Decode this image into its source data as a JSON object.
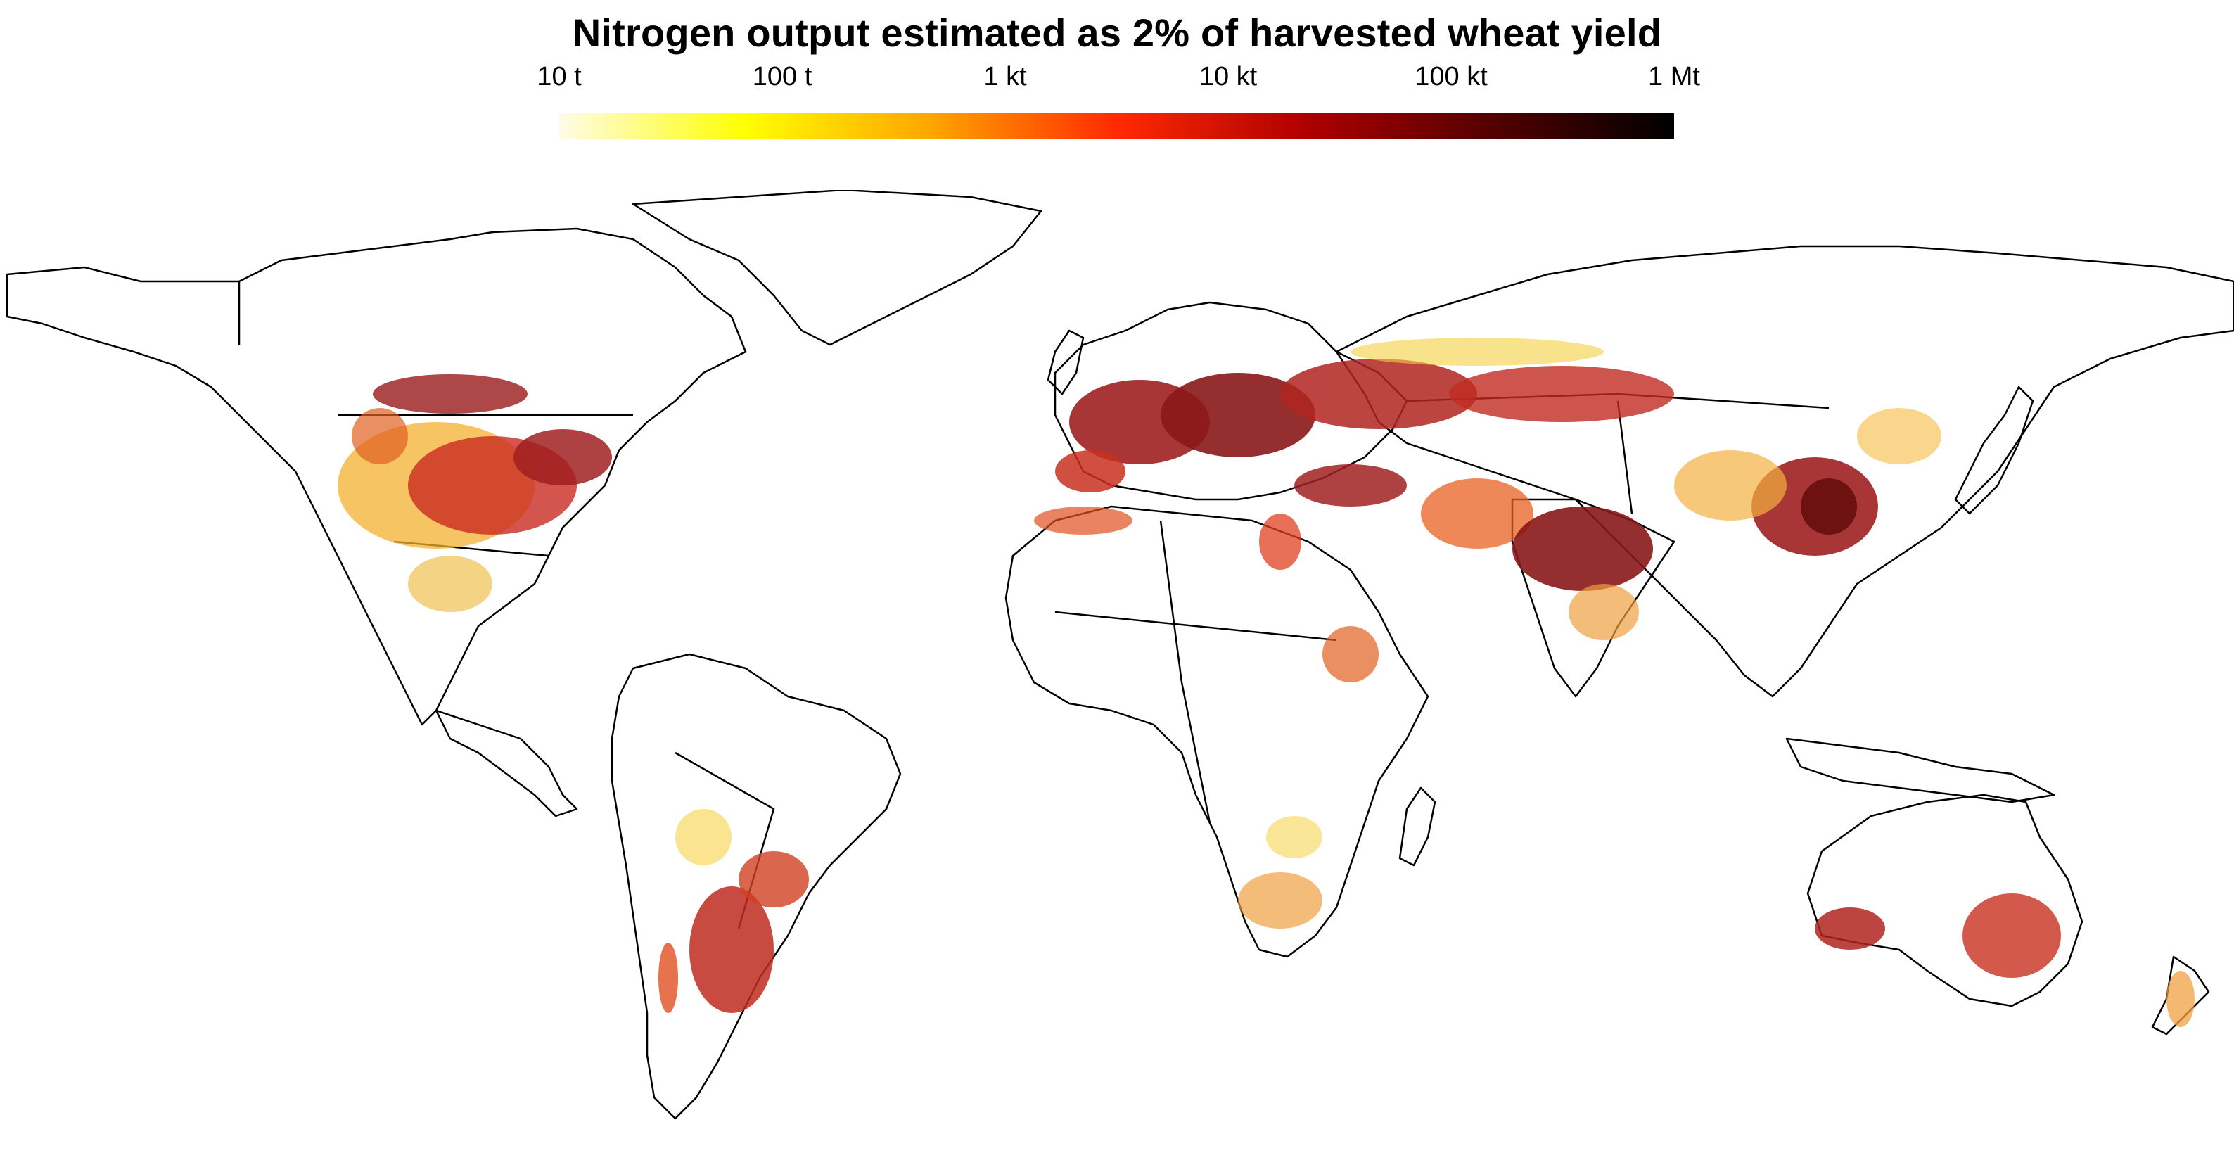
{
  "title": "Nitrogen output estimated as 2% of harvested wheat yield",
  "legend": {
    "ticks": [
      {
        "label": "10 t",
        "fraction": 0.0
      },
      {
        "label": "100 t",
        "fraction": 0.2
      },
      {
        "label": "1 kt",
        "fraction": 0.4
      },
      {
        "label": "10 kt",
        "fraction": 0.6
      },
      {
        "label": "100 kt",
        "fraction": 0.8
      },
      {
        "label": "1 Mt",
        "fraction": 1.0
      }
    ],
    "scale": "log",
    "colors": [
      "#fffbe8",
      "#ffff00",
      "#ffa500",
      "#ff2a00",
      "#b00000",
      "#550000",
      "#000000"
    ]
  },
  "colors": {
    "land_outline": "#000000",
    "background": "#ffffff",
    "low": "#fff0a0",
    "mid": "#f4b030",
    "high": "#e03020",
    "very_high": "#a02020",
    "max": "#6a1010"
  }
}
